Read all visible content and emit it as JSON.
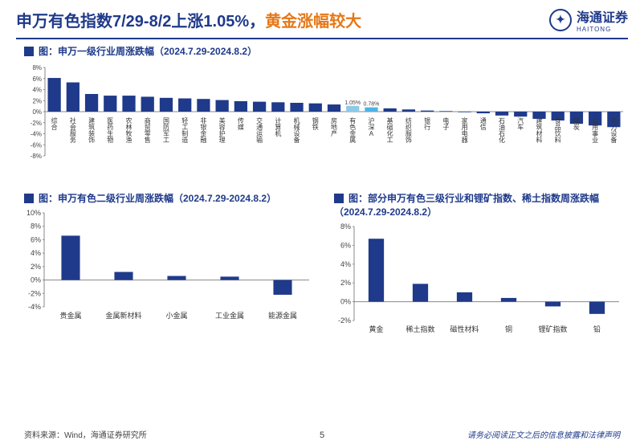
{
  "header": {
    "title_part1": "申万有色指数7/29-8/2上涨1.05%，",
    "title_part2": "黄金涨幅较大",
    "brand": "海通证券",
    "brand_sub": "HAITONG"
  },
  "chart1": {
    "title": "图：申万一级行业周涨跌幅（2024.7.29-2024.8.2）",
    "ylim": [
      -8,
      8
    ],
    "ytick_step": 2,
    "categories": [
      "综合",
      "社会服务",
      "建筑装饰",
      "医药生物",
      "农林牧渔",
      "商贸零售",
      "国防军工",
      "轻工制造",
      "非银金融",
      "美容护理",
      "传媒",
      "交通运输",
      "计算机",
      "机械设备",
      "钢铁",
      "房地产",
      "有色金属",
      "沪深A",
      "基础化工",
      "纺织服饰",
      "银行",
      "电子",
      "家用电器",
      "通信",
      "石油石化",
      "汽车",
      "建筑材料",
      "食品饮料",
      "煤炭",
      "公用事业",
      "电力设备"
    ],
    "values": [
      6.1,
      5.3,
      3.2,
      2.9,
      2.9,
      2.7,
      2.5,
      2.4,
      2.3,
      2.1,
      1.9,
      1.8,
      1.7,
      1.6,
      1.5,
      1.3,
      1.05,
      0.78,
      0.6,
      0.4,
      0.2,
      0.1,
      -0.1,
      -0.3,
      -0.7,
      -0.9,
      -1.3,
      -1.6,
      -2.2,
      -2.5,
      -2.8
    ],
    "highlight": [
      {
        "i": 16,
        "color": "#8fc9e8",
        "label": "1.05%"
      },
      {
        "i": 17,
        "color": "#4bb4e6",
        "label": "0.78%"
      }
    ],
    "bar_color": "#1f3a8a",
    "axis_color": "#888",
    "label_fontsize": 8
  },
  "chart2": {
    "title": "图：申万有色二级行业周涨跌幅（2024.7.29-2024.8.2）",
    "ylim": [
      -4,
      10
    ],
    "ytick_step": 2,
    "categories": [
      "贵金属",
      "金属新材料",
      "小金属",
      "工业金属",
      "能源金属"
    ],
    "values": [
      6.6,
      1.2,
      0.6,
      0.5,
      -2.2
    ],
    "bar_color": "#1f3a8a"
  },
  "chart3": {
    "title": "图：部分申万有色三级行业和锂矿指数、稀土指数周涨跌幅（2024.7.29-2024.8.2）",
    "ylim": [
      -2,
      8
    ],
    "ytick_step": 2,
    "categories": [
      "黄金",
      "稀土指数",
      "磁性材料",
      "铜",
      "锂矿指数",
      "铅"
    ],
    "values": [
      6.7,
      1.9,
      1.0,
      0.4,
      -0.5,
      -1.3
    ],
    "bar_color": "#1f3a8a"
  },
  "footer": {
    "source": "资料来源：Wind，海通证券研究所",
    "disclaimer": "请务必阅读正文之后的信息披露和法律声明",
    "page": "5"
  }
}
